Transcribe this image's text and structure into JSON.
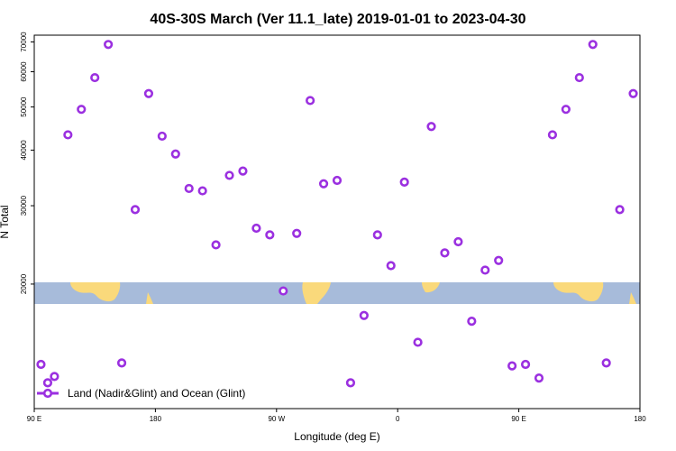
{
  "chart_data": {
    "type": "scatter",
    "title": "40S-30S March (Ver 11.1_late)   2019-01-01 to 2023-04-30",
    "xlabel": "Longitude (deg E)",
    "ylabel": "N Total",
    "xlim": [
      90,
      540
    ],
    "ylim": [
      10500,
      72500
    ],
    "y_scale": "log",
    "x_ticks": [
      {
        "value": 90,
        "label": "90 E"
      },
      {
        "value": 180,
        "label": "180"
      },
      {
        "value": 270,
        "label": "90 W"
      },
      {
        "value": 360,
        "label": "0"
      },
      {
        "value": 450,
        "label": "90 E"
      },
      {
        "value": 540,
        "label": "180"
      }
    ],
    "y_ticks": [
      {
        "value": 20000,
        "label": "20000"
      },
      {
        "value": 30000,
        "label": "30000"
      },
      {
        "value": 40000,
        "label": "40000"
      },
      {
        "value": 50000,
        "label": "50000"
      },
      {
        "value": 60000,
        "label": "60000"
      },
      {
        "value": 70000,
        "label": "70000"
      }
    ],
    "grid": false,
    "legend_position": "bottom-left",
    "series": [
      {
        "name": "Land (Nadir&Glint) and Ocean (Glint)",
        "color": "#9b30e0",
        "marker": "open-circle",
        "x": [
          95,
          100,
          105,
          115,
          125,
          135,
          145,
          155,
          165,
          175,
          185,
          195,
          205,
          215,
          225,
          235,
          245,
          255,
          265,
          275,
          285,
          295,
          305,
          315,
          325,
          335,
          345,
          355,
          365,
          375,
          385,
          395,
          405,
          415,
          425,
          435,
          445,
          455,
          465,
          475,
          485,
          495,
          505,
          515,
          525,
          535
        ],
        "y": [
          13200,
          12000,
          12400,
          43300,
          49400,
          58200,
          69100,
          13300,
          29400,
          53600,
          43000,
          39200,
          32800,
          32400,
          24500,
          35100,
          35900,
          26700,
          25800,
          19300,
          26000,
          51700,
          33600,
          34200,
          12000,
          17000,
          25800,
          22000,
          33900,
          14800,
          45200,
          23500,
          24900,
          16500,
          21500,
          22600,
          13100,
          13200,
          12300,
          43300,
          49400,
          58200,
          69100,
          13300,
          29400,
          53600
        ]
      }
    ],
    "background_map": {
      "ocean_color": "#a7bbda",
      "land_color": "#fad97b"
    }
  }
}
